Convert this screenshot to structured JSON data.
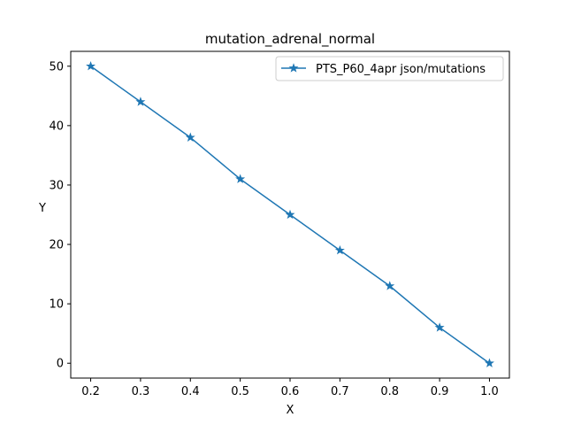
{
  "chart_data": {
    "type": "line",
    "title": "mutation_adrenal_normal",
    "xlabel": "X",
    "ylabel": "Y",
    "xlim": [
      0.16,
      1.04
    ],
    "ylim": [
      -2.5,
      52.5
    ],
    "xticks": [
      0.2,
      0.3,
      0.4,
      0.5,
      0.6,
      0.7,
      0.8,
      0.9,
      1.0
    ],
    "xtick_labels": [
      "0.2",
      "0.3",
      "0.4",
      "0.5",
      "0.6",
      "0.7",
      "0.8",
      "0.9",
      "1.0"
    ],
    "yticks": [
      0,
      10,
      20,
      30,
      40,
      50
    ],
    "ytick_labels": [
      "0",
      "10",
      "20",
      "30",
      "40",
      "50"
    ],
    "grid": false,
    "legend_position": "top-right",
    "x": [
      0.2,
      0.3,
      0.4,
      0.5,
      0.6,
      0.7,
      0.8,
      0.9,
      1.0
    ],
    "series": [
      {
        "name": "PTS_P60_4apr json/mutations",
        "marker": "star",
        "color": "#1f77b4",
        "values": [
          50,
          44,
          38,
          31,
          25,
          19,
          13,
          6,
          0
        ]
      }
    ]
  }
}
